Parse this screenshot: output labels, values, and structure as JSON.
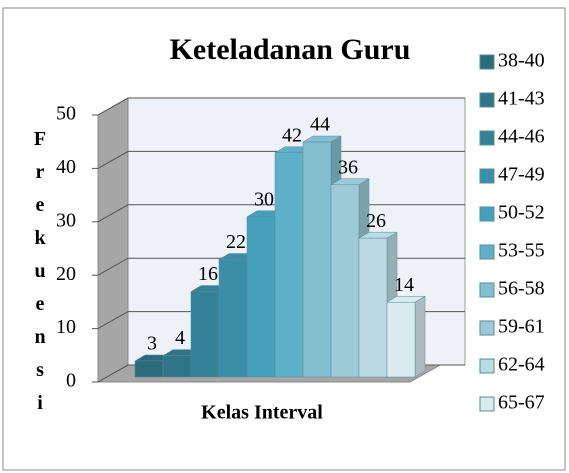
{
  "chart_data": {
    "type": "bar",
    "title": "Keteladanan Guru",
    "y_label": "Frekuensi",
    "x_label": "Kelas Interval",
    "ylim": [
      0,
      50
    ],
    "yticks": [
      0,
      10,
      20,
      30,
      40,
      50
    ],
    "grid": true,
    "legend": "right",
    "series": [
      {
        "name": "38-40",
        "color": "#2a6b7c",
        "values": [
          3
        ]
      },
      {
        "name": "41-43",
        "color": "#2f7587",
        "values": [
          4
        ]
      },
      {
        "name": "44-46",
        "color": "#338298",
        "values": [
          16
        ]
      },
      {
        "name": "47-49",
        "color": "#3a8ea8",
        "values": [
          22
        ]
      },
      {
        "name": "50-52",
        "color": "#45a0bc",
        "values": [
          30
        ]
      },
      {
        "name": "53-55",
        "color": "#5eb0c8",
        "values": [
          42
        ]
      },
      {
        "name": "56-58",
        "color": "#84bfd0",
        "values": [
          44
        ]
      },
      {
        "name": "59-61",
        "color": "#9ccad6",
        "values": [
          36
        ]
      },
      {
        "name": "62-64",
        "color": "#badbe4",
        "values": [
          26
        ]
      },
      {
        "name": "65-67",
        "color": "#d7ebf1",
        "values": [
          14
        ]
      }
    ]
  }
}
